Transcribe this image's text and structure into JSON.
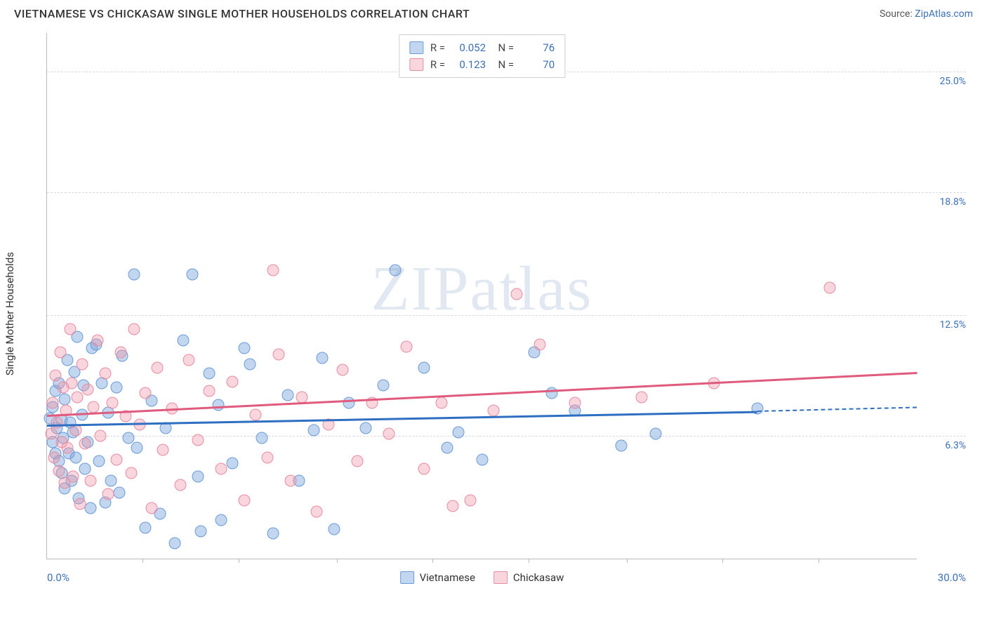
{
  "header": {
    "title": "VIETNAMESE VS CHICKASAW SINGLE MOTHER HOUSEHOLDS CORRELATION CHART",
    "source_prefix": "Source: ",
    "source_link": "ZipAtlas.com"
  },
  "chart": {
    "type": "scatter",
    "ylabel": "Single Mother Households",
    "watermark_zip": "ZIP",
    "watermark_atlas": "atlas",
    "xlim": [
      0,
      30
    ],
    "ylim": [
      0,
      27
    ],
    "x_left_label": "0.0%",
    "x_right_label": "30.0%",
    "x_ticks": [
      3.3,
      6.6,
      10,
      13.3,
      16.6,
      20,
      23.3,
      26.6
    ],
    "y_gridlines": [
      {
        "value": 6.3,
        "label": "6.3%"
      },
      {
        "value": 12.5,
        "label": "12.5%"
      },
      {
        "value": 18.8,
        "label": "18.8%"
      },
      {
        "value": 25.0,
        "label": "25.0%"
      }
    ],
    "background_color": "#ffffff",
    "grid_color": "#d9d9d9",
    "axis_color": "#bbbbbb",
    "marker_radius": 8.5,
    "series": [
      {
        "name": "Vietnamese",
        "fill": "rgba(120,165,220,0.45)",
        "stroke": "#6a9bd8",
        "line_color": "#2e6fc1",
        "R": "0.052",
        "N": "76",
        "trend": {
          "x1": 0,
          "y1": 6.9,
          "x2": 24.5,
          "y2": 7.6,
          "dash_to_x": 30,
          "dash_to_y": 7.8
        },
        "points": [
          [
            0.1,
            7.2
          ],
          [
            0.2,
            6.0
          ],
          [
            0.2,
            7.8
          ],
          [
            0.3,
            5.4
          ],
          [
            0.3,
            8.6
          ],
          [
            0.35,
            6.7
          ],
          [
            0.4,
            5.0
          ],
          [
            0.4,
            9.0
          ],
          [
            0.5,
            7.1
          ],
          [
            0.5,
            4.4
          ],
          [
            0.55,
            6.2
          ],
          [
            0.6,
            8.2
          ],
          [
            0.6,
            3.6
          ],
          [
            0.7,
            10.2
          ],
          [
            0.75,
            5.4
          ],
          [
            0.8,
            7.0
          ],
          [
            0.85,
            4.0
          ],
          [
            0.9,
            6.5
          ],
          [
            0.95,
            9.6
          ],
          [
            1.0,
            5.2
          ],
          [
            1.05,
            11.4
          ],
          [
            1.1,
            3.1
          ],
          [
            1.2,
            7.4
          ],
          [
            1.25,
            8.9
          ],
          [
            1.3,
            4.6
          ],
          [
            1.4,
            6.0
          ],
          [
            1.5,
            2.6
          ],
          [
            1.55,
            10.8
          ],
          [
            1.7,
            11.0
          ],
          [
            1.8,
            5.0
          ],
          [
            1.9,
            9.0
          ],
          [
            2.0,
            2.9
          ],
          [
            2.1,
            7.5
          ],
          [
            2.2,
            4.0
          ],
          [
            2.4,
            8.8
          ],
          [
            2.5,
            3.4
          ],
          [
            2.6,
            10.4
          ],
          [
            2.8,
            6.2
          ],
          [
            3.0,
            14.6
          ],
          [
            3.1,
            5.7
          ],
          [
            3.4,
            1.6
          ],
          [
            3.6,
            8.1
          ],
          [
            3.9,
            2.3
          ],
          [
            4.1,
            6.7
          ],
          [
            4.4,
            0.8
          ],
          [
            4.7,
            11.2
          ],
          [
            5.0,
            14.6
          ],
          [
            5.2,
            4.2
          ],
          [
            5.3,
            1.4
          ],
          [
            5.6,
            9.5
          ],
          [
            5.9,
            7.9
          ],
          [
            6.0,
            2.0
          ],
          [
            6.4,
            4.9
          ],
          [
            6.8,
            10.8
          ],
          [
            7.0,
            10.0
          ],
          [
            7.4,
            6.2
          ],
          [
            7.8,
            1.3
          ],
          [
            8.3,
            8.4
          ],
          [
            8.7,
            4.0
          ],
          [
            9.2,
            6.6
          ],
          [
            9.5,
            10.3
          ],
          [
            9.9,
            1.5
          ],
          [
            10.4,
            8.0
          ],
          [
            11.0,
            6.7
          ],
          [
            11.6,
            8.9
          ],
          [
            12.0,
            14.8
          ],
          [
            13.0,
            9.8
          ],
          [
            13.8,
            5.7
          ],
          [
            14.2,
            6.5
          ],
          [
            15.0,
            5.1
          ],
          [
            16.8,
            10.6
          ],
          [
            17.4,
            8.5
          ],
          [
            18.2,
            7.6
          ],
          [
            19.8,
            5.8
          ],
          [
            21.0,
            6.4
          ],
          [
            24.5,
            7.7
          ]
        ]
      },
      {
        "name": "Chickasaw",
        "fill": "rgba(240,150,170,0.40)",
        "stroke": "#e88ca1",
        "line_color": "#e05a7d",
        "R": "0.123",
        "N": "70",
        "trend": {
          "x1": 0,
          "y1": 7.4,
          "x2": 30,
          "y2": 9.6
        },
        "points": [
          [
            0.15,
            6.4
          ],
          [
            0.2,
            8.0
          ],
          [
            0.25,
            5.2
          ],
          [
            0.3,
            9.4
          ],
          [
            0.35,
            7.0
          ],
          [
            0.4,
            4.5
          ],
          [
            0.45,
            10.6
          ],
          [
            0.5,
            6.0
          ],
          [
            0.55,
            8.8
          ],
          [
            0.6,
            3.9
          ],
          [
            0.65,
            7.6
          ],
          [
            0.7,
            5.7
          ],
          [
            0.8,
            11.8
          ],
          [
            0.85,
            9.0
          ],
          [
            0.9,
            4.2
          ],
          [
            1.0,
            6.6
          ],
          [
            1.05,
            8.3
          ],
          [
            1.15,
            2.8
          ],
          [
            1.2,
            10.0
          ],
          [
            1.3,
            5.9
          ],
          [
            1.4,
            8.7
          ],
          [
            1.5,
            4.0
          ],
          [
            1.6,
            7.8
          ],
          [
            1.75,
            11.2
          ],
          [
            1.85,
            6.3
          ],
          [
            2.0,
            9.5
          ],
          [
            2.1,
            3.3
          ],
          [
            2.25,
            8.0
          ],
          [
            2.4,
            5.1
          ],
          [
            2.55,
            10.6
          ],
          [
            2.7,
            7.3
          ],
          [
            2.9,
            4.4
          ],
          [
            3.0,
            11.8
          ],
          [
            3.2,
            6.9
          ],
          [
            3.4,
            8.5
          ],
          [
            3.6,
            2.6
          ],
          [
            3.8,
            9.8
          ],
          [
            4.0,
            5.6
          ],
          [
            4.3,
            7.7
          ],
          [
            4.6,
            3.8
          ],
          [
            4.9,
            10.2
          ],
          [
            5.2,
            6.1
          ],
          [
            5.6,
            8.6
          ],
          [
            6.0,
            4.6
          ],
          [
            6.4,
            9.1
          ],
          [
            6.8,
            3.0
          ],
          [
            7.2,
            7.4
          ],
          [
            7.6,
            5.2
          ],
          [
            7.8,
            14.8
          ],
          [
            8.0,
            10.5
          ],
          [
            8.4,
            4.0
          ],
          [
            8.8,
            8.3
          ],
          [
            9.3,
            2.4
          ],
          [
            9.7,
            6.9
          ],
          [
            10.2,
            9.7
          ],
          [
            10.7,
            5.0
          ],
          [
            11.2,
            8.0
          ],
          [
            11.8,
            6.4
          ],
          [
            12.4,
            10.9
          ],
          [
            13.0,
            4.6
          ],
          [
            13.6,
            8.0
          ],
          [
            14.0,
            2.7
          ],
          [
            14.6,
            3.0
          ],
          [
            15.4,
            7.6
          ],
          [
            16.2,
            13.6
          ],
          [
            17.0,
            11.0
          ],
          [
            18.2,
            8.0
          ],
          [
            20.5,
            8.3
          ],
          [
            23.0,
            9.0
          ],
          [
            27.0,
            13.9
          ]
        ]
      }
    ],
    "legend_bottom": [
      {
        "label": "Vietnamese",
        "fill": "rgba(120,165,220,0.45)",
        "stroke": "#6a9bd8"
      },
      {
        "label": "Chickasaw",
        "fill": "rgba(240,150,170,0.40)",
        "stroke": "#e88ca1"
      }
    ]
  }
}
